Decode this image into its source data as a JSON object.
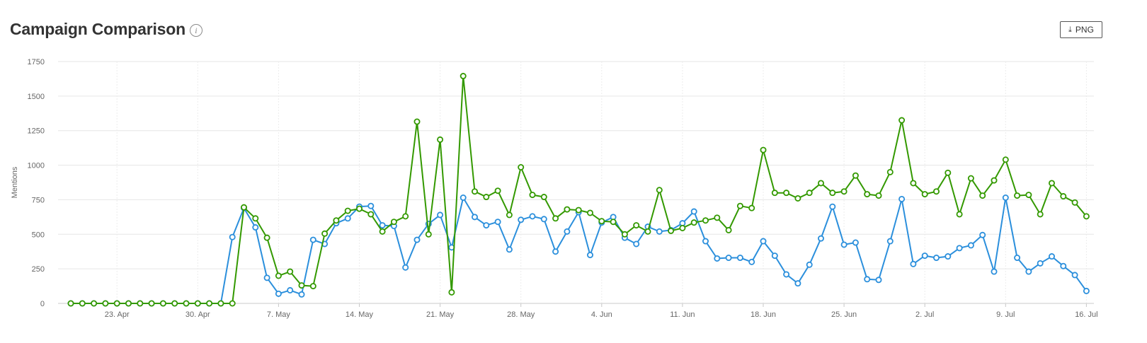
{
  "header": {
    "title": "Campaign Comparison",
    "info_icon": "info-icon"
  },
  "toolbar": {
    "png_label": "PNG",
    "download_icon": "download-icon"
  },
  "chart_data": {
    "type": "line",
    "title": "Campaign Comparison",
    "xlabel": "",
    "ylabel": "Mentions",
    "ylim": [
      0,
      1750
    ],
    "yticks": [
      0,
      250,
      500,
      750,
      1000,
      1250,
      1500,
      1750
    ],
    "xticks": [
      "23. Apr",
      "30. Apr",
      "7. May",
      "14. May",
      "21. May",
      "28. May",
      "4. Jun",
      "11. Jun",
      "18. Jun",
      "25. Jun",
      "2. Jul",
      "9. Jul",
      "16. Jul"
    ],
    "x_start": "2018-04-19",
    "grid": true,
    "legend": "none",
    "series": [
      {
        "color": "#2b8fdc",
        "values": [
          0,
          0,
          0,
          0,
          0,
          0,
          0,
          0,
          0,
          0,
          0,
          0,
          0,
          0,
          480,
          690,
          550,
          185,
          70,
          95,
          65,
          460,
          430,
          580,
          615,
          700,
          705,
          565,
          560,
          260,
          460,
          575,
          640,
          405,
          765,
          625,
          565,
          590,
          390,
          605,
          630,
          610,
          375,
          520,
          660,
          350,
          585,
          625,
          475,
          430,
          555,
          520,
          530,
          580,
          665,
          450,
          325,
          330,
          330,
          300,
          450,
          345,
          210,
          145,
          280,
          470,
          700,
          425,
          440,
          175,
          170,
          450,
          755,
          285,
          345,
          330,
          340,
          400,
          420,
          495,
          230,
          765,
          330,
          230,
          290,
          340,
          270,
          205,
          90
        ]
      },
      {
        "color": "#339900",
        "values": [
          0,
          0,
          0,
          0,
          0,
          0,
          0,
          0,
          0,
          0,
          0,
          0,
          0,
          0,
          0,
          695,
          615,
          475,
          200,
          230,
          130,
          125,
          505,
          600,
          670,
          685,
          645,
          520,
          590,
          630,
          1315,
          500,
          1185,
          80,
          1645,
          810,
          770,
          815,
          640,
          985,
          785,
          770,
          615,
          680,
          675,
          655,
          595,
          590,
          500,
          565,
          520,
          820,
          525,
          545,
          585,
          600,
          620,
          530,
          705,
          690,
          1110,
          800,
          800,
          760,
          800,
          870,
          800,
          810,
          925,
          790,
          780,
          950,
          1325,
          870,
          790,
          810,
          945,
          645,
          905,
          780,
          890,
          1040,
          780,
          785,
          645,
          870,
          775,
          730,
          630
        ]
      }
    ]
  }
}
